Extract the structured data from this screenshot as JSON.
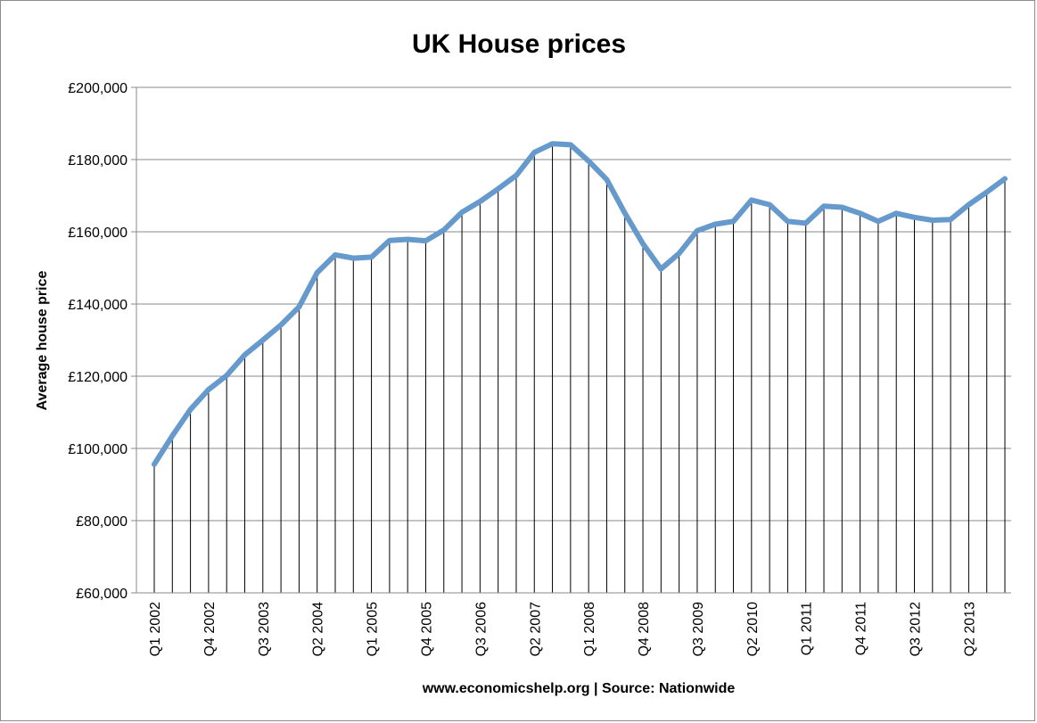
{
  "chart_data": {
    "type": "line",
    "title": "UK House prices",
    "xlabel": "www.economicshelp.org | Source: Nationwide",
    "ylabel": "Average house price",
    "ylim": [
      60000,
      200000
    ],
    "y_ticks": [
      60000,
      80000,
      100000,
      120000,
      140000,
      160000,
      180000,
      200000
    ],
    "y_tick_labels": [
      "£60,000",
      "£80,000",
      "£100,000",
      "£120,000",
      "£140,000",
      "£160,000",
      "£180,000",
      "£200,000"
    ],
    "grid": "horizontal",
    "drop_lines": true,
    "x_tick_labels": [
      {
        "index": 0,
        "label": "Q1 2002"
      },
      {
        "index": 3,
        "label": "Q4 2002"
      },
      {
        "index": 6,
        "label": "Q3 2003"
      },
      {
        "index": 9,
        "label": "Q2 2004"
      },
      {
        "index": 12,
        "label": "Q1 2005"
      },
      {
        "index": 15,
        "label": "Q4 2005"
      },
      {
        "index": 18,
        "label": "Q3 2006"
      },
      {
        "index": 21,
        "label": "Q2 2007"
      },
      {
        "index": 24,
        "label": "Q1 2008"
      },
      {
        "index": 27,
        "label": "Q4 2008"
      },
      {
        "index": 30,
        "label": "Q3 2009"
      },
      {
        "index": 33,
        "label": "Q2 2010"
      },
      {
        "index": 36,
        "label": "Q1 2011"
      },
      {
        "index": 39,
        "label": "Q4 2011"
      },
      {
        "index": 42,
        "label": "Q3 2012"
      },
      {
        "index": 45,
        "label": "Q2 2013"
      }
    ],
    "series": [
      {
        "color": "#6699cc",
        "values": [
          95600,
          103500,
          110800,
          116300,
          120200,
          125900,
          130000,
          134200,
          139200,
          148700,
          153600,
          152700,
          153000,
          157600,
          157900,
          157500,
          160500,
          165400,
          168400,
          171900,
          175600,
          182000,
          184400,
          184100,
          179600,
          174500,
          165200,
          156700,
          149700,
          154000,
          160300,
          162100,
          162900,
          168800,
          167500,
          162900,
          162400,
          167100,
          166800,
          165100,
          162900,
          165100,
          164000,
          163200,
          163400,
          167500,
          171000,
          174700
        ]
      }
    ]
  }
}
